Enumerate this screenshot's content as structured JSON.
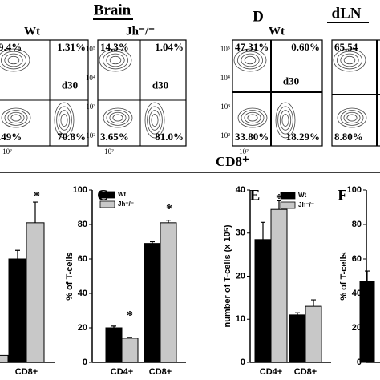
{
  "figure": {
    "brain_title": "Brain",
    "d_label": "D",
    "dln_title": "dLN",
    "x_axis_label": "CD8⁺",
    "axis_ticks": [
      "10²",
      "10³",
      "10⁴",
      "10⁵"
    ],
    "plots": [
      {
        "header": "Wt",
        "timepoint": "d30",
        "top_left": "9.4%",
        "top_right": "1.31%",
        "bottom_left": ".49%",
        "bottom_right": "70.8%"
      },
      {
        "header": "Jh⁻/⁻",
        "timepoint": "d30",
        "top_left": "14.3%",
        "top_right": "1.04%",
        "bottom_left": "3.65%",
        "bottom_right": "81.0%"
      },
      {
        "header": "Wt",
        "timepoint": "d30",
        "top_left": "47.31%",
        "top_right": "0.60%",
        "bottom_left": "33.80%",
        "bottom_right": "18.29%"
      },
      {
        "top_left": "65.54",
        "bottom_left": "8.80%"
      }
    ]
  },
  "chart_data": [
    {
      "type": "bar",
      "categories": [
        null,
        "CD8+"
      ],
      "ylim": [
        0,
        100
      ],
      "series": [
        {
          "name": "Wt",
          "color": "#000000",
          "values": [
            null,
            60
          ],
          "errors": [
            null,
            5
          ]
        },
        {
          "name": "Jh-/-",
          "color": "#c8c8c8",
          "values": [
            4,
            81
          ],
          "errors": [
            null,
            12
          ]
        }
      ],
      "annotations": [
        "*"
      ]
    },
    {
      "type": "bar",
      "panel": "C",
      "ylabel": "% of T-cells",
      "categories": [
        "CD4+",
        "CD8+"
      ],
      "ylim": [
        0,
        100
      ],
      "yticks": [
        0,
        20,
        40,
        60,
        80,
        100
      ],
      "series": [
        {
          "name": "Wt",
          "color": "#000000",
          "values": [
            20,
            69
          ],
          "errors": [
            1,
            1
          ]
        },
        {
          "name": "Jh⁻/⁻",
          "color": "#c8c8c8",
          "values": [
            14,
            81
          ],
          "errors": [
            0.5,
            1.5
          ]
        }
      ],
      "annotations": [
        "*",
        "*"
      ],
      "legend": true
    },
    {
      "type": "bar",
      "panel": "E",
      "ylabel": "number of T-cells (x 10⁵)",
      "categories": [
        "CD4+",
        "CD8+"
      ],
      "ylim": [
        0,
        40
      ],
      "yticks": [
        0,
        10,
        20,
        30,
        40
      ],
      "series": [
        {
          "name": "Wt",
          "color": "#000000",
          "values": [
            28.5,
            11
          ],
          "errors": [
            4,
            0.5
          ]
        },
        {
          "name": "Jh⁻/⁻",
          "color": "#c8c8c8",
          "values": [
            35.5,
            13
          ],
          "errors": [
            2,
            1.5
          ]
        }
      ],
      "annotations": [
        "*"
      ],
      "legend": true
    },
    {
      "type": "bar",
      "panel": "F",
      "ylabel": "% of T-cells",
      "categories": [
        null
      ],
      "ylim": [
        0,
        100
      ],
      "yticks": [
        0,
        20,
        40,
        60,
        80,
        100
      ],
      "series": [
        {
          "name": "Wt",
          "color": "#000000",
          "values": [
            47
          ],
          "errors": [
            6
          ]
        }
      ]
    }
  ]
}
